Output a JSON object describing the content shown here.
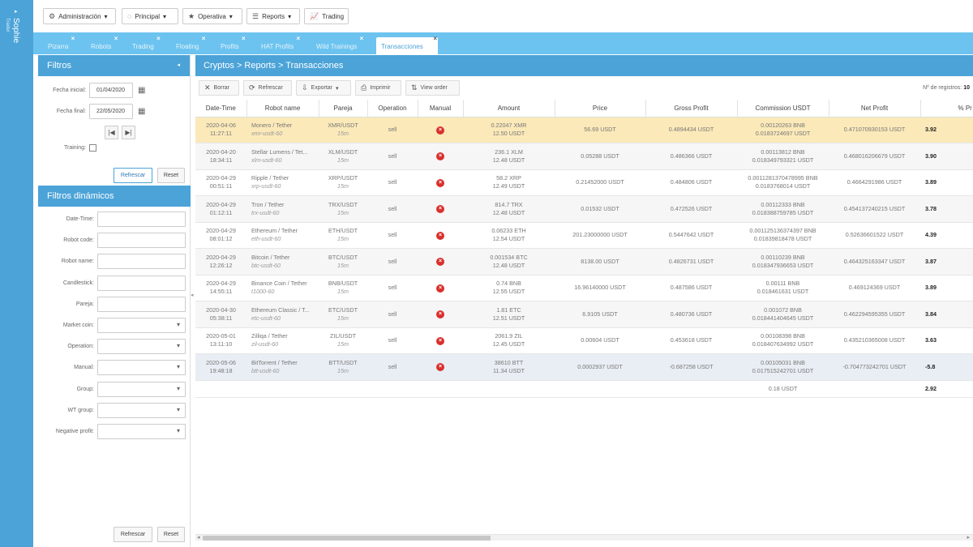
{
  "user": {
    "name": "Sophie",
    "role": "Trader"
  },
  "topmenu": [
    {
      "label": "Administración",
      "icon": "gear-icon"
    },
    {
      "label": "Principal",
      "icon": "circle-icon"
    },
    {
      "label": "Operativa",
      "icon": "star-icon"
    },
    {
      "label": "Reports",
      "icon": "list-icon"
    },
    {
      "label": "Trading",
      "icon": "chart-icon"
    }
  ],
  "tabs": [
    "Pizarra",
    "Robots",
    "Trading",
    "Floating",
    "Profits",
    "HAT Profits",
    "Wild Trainings",
    "Transacciones"
  ],
  "filters": {
    "title": "Filtros",
    "fecha_inicial_label": "Fecha inicial:",
    "fecha_inicial": "01/04/2020",
    "fecha_final_label": "Fecha final:",
    "fecha_final": "22/05/2020",
    "training_label": "Training:",
    "refresh": "Refrescar",
    "reset": "Reset"
  },
  "dyn_filters": {
    "title": "Filtros dinámicos",
    "fields": [
      {
        "label": "Date-Time:",
        "type": "text"
      },
      {
        "label": "Robot code:",
        "type": "text"
      },
      {
        "label": "Robot name:",
        "type": "text"
      },
      {
        "label": "Candlestick:",
        "type": "text"
      },
      {
        "label": "Pareja:",
        "type": "text"
      },
      {
        "label": "Market coin:",
        "type": "select"
      },
      {
        "label": "Operation:",
        "type": "select"
      },
      {
        "label": "Manual:",
        "type": "select"
      },
      {
        "label": "Group:",
        "type": "select"
      },
      {
        "label": "WT group:",
        "type": "select"
      },
      {
        "label": "Negative profit:",
        "type": "select"
      }
    ],
    "refresh": "Refrescar",
    "reset": "Reset"
  },
  "breadcrumb": "Cryptos > Reports > Transacciones",
  "toolbar": {
    "borrar": "Borrar",
    "refrescar": "Refrescar",
    "exportar": "Exportar",
    "imprimir": "Imprimir",
    "view_order": "View order",
    "nreg_label": "Nº de registros:",
    "nreg": "10"
  },
  "columns": [
    "Date-Time",
    "Robot name",
    "Pareja",
    "Operation",
    "Manual",
    "Amount",
    "Price",
    "Gross Profit",
    "Commission USDT",
    "Net Profit",
    "% Pr"
  ],
  "rows": [
    {
      "date": "2020-04-06",
      "time": "11:27:11",
      "robot": "Monero / Tether",
      "code": "xmr-usdt-60",
      "pair": "XMR/USDT",
      "tf": "15m",
      "op": "sell",
      "amount1": "0.22047 XMR",
      "amount2": "12.50 USDT",
      "price": "56.69 USDT",
      "gross": "0.4894434 USDT",
      "comm1": "0.00120263 BNB",
      "comm2": "0.0183724697 USDT",
      "net": "0.471070930153 USDT",
      "pct": "3.92"
    },
    {
      "date": "2020-04-20",
      "time": "18:34:11",
      "robot": "Stellar Lumens / Tet...",
      "code": "xlm-usdt-60",
      "pair": "XLM/USDT",
      "tf": "15m",
      "op": "sell",
      "amount1": "236.1 XLM",
      "amount2": "12.48 USDT",
      "price": "0.05288 USDT",
      "gross": "0.486366 USDT",
      "comm1": "0.00113812 BNB",
      "comm2": "0.018349793321 USDT",
      "net": "0.468016206679 USDT",
      "pct": "3.90"
    },
    {
      "date": "2020-04-29",
      "time": "00:51:11",
      "robot": "Ripple / Tether",
      "code": "xrp-usdt-60",
      "pair": "XRP/USDT",
      "tf": "15m",
      "op": "sell",
      "amount1": "58.2 XRP",
      "amount2": "12.49 USDT",
      "price": "0.21452000 USDT",
      "gross": "0.484806 USDT",
      "comm1": "0.0011281370478995 BNB",
      "comm2": "0.0183768014 USDT",
      "net": "0.4664291986 USDT",
      "pct": "3.89"
    },
    {
      "date": "2020-04-29",
      "time": "01:12:11",
      "robot": "Tron / Tether",
      "code": "trx-usdt-60",
      "pair": "TRX/USDT",
      "tf": "15m",
      "op": "sell",
      "amount1": "814.7 TRX",
      "amount2": "12.48 USDT",
      "price": "0.01532 USDT",
      "gross": "0.472526 USDT",
      "comm1": "0.00112333 BNB",
      "comm2": "0.018388759785 USDT",
      "net": "0.454137240215 USDT",
      "pct": "3.78"
    },
    {
      "date": "2020-04-29",
      "time": "08:01:12",
      "robot": "Ethereum / Tether",
      "code": "eth-usdt-60",
      "pair": "ETH/USDT",
      "tf": "15m",
      "op": "sell",
      "amount1": "0.06233 ETH",
      "amount2": "12.54 USDT",
      "price": "201.23000000 USDT",
      "gross": "0.5447642 USDT",
      "comm1": "0.001125136374397 BNB",
      "comm2": "0.01839818478 USDT",
      "net": "0.52636601522 USDT",
      "pct": "4.39"
    },
    {
      "date": "2020-04-29",
      "time": "12:26:12",
      "robot": "Bitcoin / Tether",
      "code": "btc-usdt-60",
      "pair": "BTC/USDT",
      "tf": "15m",
      "op": "sell",
      "amount1": "0.001534 BTC",
      "amount2": "12.48 USDT",
      "price": "8138.00 USDT",
      "gross": "0.4826731 USDT",
      "comm1": "0.00110239 BNB",
      "comm2": "0.018347936653 USDT",
      "net": "0.464325163347 USDT",
      "pct": "3.87"
    },
    {
      "date": "2020-04-29",
      "time": "14:55:11",
      "robot": "Binance Coin / Tether",
      "code": "t1000-60",
      "pair": "BNB/USDT",
      "tf": "15m",
      "op": "sell",
      "amount1": "0.74 BNB",
      "amount2": "12.55 USDT",
      "price": "16.96140000 USDT",
      "gross": "0.487586 USDT",
      "comm1": "0.00111 BNB",
      "comm2": "0.018461631 USDT",
      "net": "0.469124369 USDT",
      "pct": "3.89"
    },
    {
      "date": "2020-04-30",
      "time": "05:38:11",
      "robot": "Ethereum Classic / T...",
      "code": "etc-usdt-60",
      "pair": "ETC/USDT",
      "tf": "15m",
      "op": "sell",
      "amount1": "1.81 ETC",
      "amount2": "12.51 USDT",
      "price": "6.9105 USDT",
      "gross": "0.480736 USDT",
      "comm1": "0.001072 BNB",
      "comm2": "0.018441404645 USDT",
      "net": "0.462294595355 USDT",
      "pct": "3.84"
    },
    {
      "date": "2020-05-01",
      "time": "13:11:10",
      "robot": "Zilliqa / Tether",
      "code": "zil-usdt-60",
      "pair": "ZIL/USDT",
      "tf": "15m",
      "op": "sell",
      "amount1": "2061.9 ZIL",
      "amount2": "12.45 USDT",
      "price": "0.00604 USDT",
      "gross": "0.453618 USDT",
      "comm1": "0.00108398 BNB",
      "comm2": "0.018407634992 USDT",
      "net": "0.435210365008 USDT",
      "pct": "3.63"
    },
    {
      "date": "2020-05-06",
      "time": "19:48:18",
      "robot": "BitTorrent / Tether",
      "code": "btt-usdt-60",
      "pair": "BTT/USDT",
      "tf": "15m",
      "op": "sell",
      "amount1": "38610 BTT",
      "amount2": "11.34 USDT",
      "price": "0.0002937 USDT",
      "gross": "-0.687258 USDT",
      "comm1": "0.00105031 BNB",
      "comm2": "0.017515242701 USDT",
      "net": "-0.704773242701 USDT",
      "pct": "-5.8"
    }
  ],
  "totals": {
    "commission": "0.18 USDT",
    "pct": "2.92"
  }
}
